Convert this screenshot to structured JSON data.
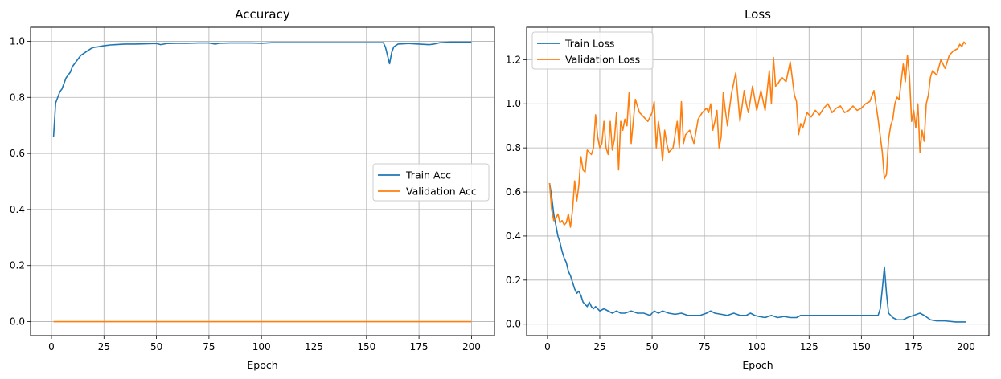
{
  "chart_data": [
    {
      "type": "line",
      "title": "Accuracy",
      "xlabel": "Epoch",
      "ylabel": "",
      "xlim": [
        -9.95,
        210.95
      ],
      "ylim": [
        -0.05,
        1.05
      ],
      "xticks": [
        0,
        25,
        50,
        75,
        100,
        125,
        150,
        175,
        200
      ],
      "yticks": [
        0.0,
        0.2,
        0.4,
        0.6,
        0.8,
        1.0
      ],
      "ytick_labels": [
        "0.0",
        "0.2",
        "0.4",
        "0.6",
        "0.8",
        "1.0"
      ],
      "grid": true,
      "legend_position": "center-right",
      "series": [
        {
          "name": "Train Acc",
          "color": "#1f77b4",
          "x": [
            1,
            2,
            3,
            4,
            5,
            6,
            7,
            8,
            9,
            10,
            11,
            12,
            13,
            14,
            15,
            16,
            17,
            18,
            19,
            20,
            22,
            24,
            26,
            28,
            30,
            35,
            40,
            45,
            50,
            52,
            55,
            60,
            65,
            70,
            75,
            78,
            80,
            85,
            90,
            95,
            100,
            105,
            110,
            115,
            120,
            130,
            140,
            150,
            155,
            158,
            159,
            160,
            161,
            162,
            163,
            165,
            170,
            175,
            180,
            182,
            185,
            190,
            195,
            200
          ],
          "values": [
            0.66,
            0.78,
            0.8,
            0.82,
            0.83,
            0.85,
            0.87,
            0.88,
            0.89,
            0.91,
            0.92,
            0.93,
            0.94,
            0.95,
            0.955,
            0.96,
            0.965,
            0.97,
            0.975,
            0.978,
            0.98,
            0.983,
            0.985,
            0.987,
            0.988,
            0.99,
            0.99,
            0.991,
            0.992,
            0.988,
            0.992,
            0.993,
            0.993,
            0.994,
            0.994,
            0.99,
            0.993,
            0.994,
            0.994,
            0.994,
            0.993,
            0.995,
            0.995,
            0.995,
            0.995,
            0.995,
            0.995,
            0.995,
            0.995,
            0.995,
            0.98,
            0.95,
            0.92,
            0.96,
            0.98,
            0.99,
            0.992,
            0.99,
            0.988,
            0.99,
            0.995,
            0.997,
            0.997,
            0.997
          ]
        },
        {
          "name": "Validation Acc",
          "color": "#ff7f0e",
          "x": [
            1,
            200
          ],
          "values": [
            0.0,
            0.0
          ]
        }
      ]
    },
    {
      "type": "line",
      "title": "Loss",
      "xlabel": "Epoch",
      "ylabel": "",
      "xlim": [
        -9.95,
        210.95
      ],
      "ylim": [
        -0.052,
        1.347
      ],
      "xticks": [
        0,
        25,
        50,
        75,
        100,
        125,
        150,
        175,
        200
      ],
      "yticks": [
        0.0,
        0.2,
        0.4,
        0.6,
        0.8,
        1.0,
        1.2
      ],
      "ytick_labels": [
        "0.0",
        "0.2",
        "0.4",
        "0.6",
        "0.8",
        "1.0",
        "1.2"
      ],
      "grid": true,
      "legend_position": "top-left",
      "series": [
        {
          "name": "Train Loss",
          "color": "#1f77b4",
          "x": [
            1,
            2,
            3,
            4,
            5,
            6,
            7,
            8,
            9,
            10,
            11,
            12,
            13,
            14,
            15,
            16,
            17,
            18,
            19,
            20,
            21,
            22,
            23,
            24,
            25,
            27,
            29,
            31,
            33,
            35,
            37,
            40,
            43,
            46,
            49,
            51,
            53,
            55,
            58,
            61,
            64,
            67,
            70,
            73,
            76,
            78,
            80,
            83,
            86,
            89,
            92,
            95,
            97,
            99,
            101,
            104,
            107,
            110,
            113,
            116,
            119,
            121,
            125,
            130,
            135,
            140,
            145,
            150,
            155,
            158,
            159,
            160,
            161,
            162,
            163,
            165,
            167,
            170,
            172,
            175,
            178,
            180,
            183,
            186,
            190,
            195,
            200
          ],
          "values": [
            0.64,
            0.58,
            0.5,
            0.45,
            0.4,
            0.37,
            0.33,
            0.3,
            0.28,
            0.24,
            0.22,
            0.19,
            0.16,
            0.14,
            0.15,
            0.13,
            0.1,
            0.09,
            0.08,
            0.1,
            0.08,
            0.07,
            0.08,
            0.07,
            0.06,
            0.07,
            0.06,
            0.05,
            0.06,
            0.05,
            0.05,
            0.06,
            0.05,
            0.05,
            0.04,
            0.06,
            0.05,
            0.06,
            0.05,
            0.045,
            0.05,
            0.04,
            0.04,
            0.04,
            0.05,
            0.06,
            0.05,
            0.045,
            0.04,
            0.05,
            0.04,
            0.04,
            0.05,
            0.04,
            0.035,
            0.03,
            0.04,
            0.03,
            0.035,
            0.03,
            0.03,
            0.04,
            0.04,
            0.04,
            0.04,
            0.04,
            0.04,
            0.04,
            0.04,
            0.04,
            0.07,
            0.16,
            0.26,
            0.14,
            0.05,
            0.03,
            0.02,
            0.02,
            0.03,
            0.04,
            0.05,
            0.04,
            0.02,
            0.015,
            0.015,
            0.01,
            0.01
          ]
        },
        {
          "name": "Validation Loss",
          "color": "#ff7f0e",
          "x": [
            1,
            2,
            3,
            4,
            5,
            6,
            7,
            8,
            9,
            10,
            11,
            12,
            13,
            14,
            15,
            16,
            17,
            18,
            19,
            20,
            21,
            22,
            23,
            24,
            25,
            26,
            27,
            28,
            29,
            30,
            31,
            32,
            33,
            34,
            35,
            36,
            37,
            38,
            39,
            40,
            42,
            44,
            46,
            48,
            50,
            51,
            52,
            53,
            54,
            55,
            56,
            57,
            58,
            60,
            62,
            63,
            64,
            65,
            66,
            68,
            70,
            72,
            74,
            75,
            76,
            77,
            78,
            79,
            80,
            81,
            82,
            83,
            84,
            85,
            86,
            87,
            88,
            90,
            92,
            94,
            95,
            96,
            98,
            100,
            102,
            104,
            106,
            107,
            108,
            109,
            110,
            112,
            114,
            116,
            118,
            119,
            120,
            121,
            122,
            124,
            126,
            128,
            130,
            132,
            134,
            136,
            138,
            140,
            142,
            144,
            146,
            148,
            150,
            152,
            154,
            156,
            158,
            160,
            161,
            162,
            163,
            164,
            165,
            166,
            167,
            168,
            170,
            171,
            172,
            173,
            174,
            175,
            176,
            177,
            178,
            179,
            180,
            181,
            182,
            183,
            184,
            186,
            188,
            190,
            192,
            194,
            196,
            197,
            198,
            199,
            200
          ],
          "values": [
            0.64,
            0.52,
            0.47,
            0.48,
            0.5,
            0.46,
            0.47,
            0.45,
            0.46,
            0.5,
            0.44,
            0.52,
            0.65,
            0.56,
            0.63,
            0.76,
            0.7,
            0.69,
            0.79,
            0.78,
            0.77,
            0.8,
            0.95,
            0.85,
            0.8,
            0.82,
            0.92,
            0.8,
            0.77,
            0.92,
            0.79,
            0.84,
            0.96,
            0.7,
            0.92,
            0.88,
            0.93,
            0.9,
            1.05,
            0.82,
            1.02,
            0.96,
            0.94,
            0.92,
            0.96,
            1.01,
            0.8,
            0.92,
            0.85,
            0.74,
            0.88,
            0.82,
            0.78,
            0.8,
            0.92,
            0.8,
            1.01,
            0.82,
            0.86,
            0.88,
            0.82,
            0.93,
            0.96,
            0.97,
            0.98,
            0.96,
            1.0,
            0.88,
            0.92,
            0.97,
            0.8,
            0.85,
            1.05,
            0.97,
            0.9,
            0.98,
            1.05,
            1.14,
            0.92,
            1.06,
            1.0,
            0.96,
            1.08,
            0.97,
            1.06,
            0.97,
            1.15,
            1.0,
            1.21,
            1.08,
            1.09,
            1.12,
            1.1,
            1.19,
            1.04,
            1.01,
            0.86,
            0.91,
            0.89,
            0.96,
            0.94,
            0.97,
            0.95,
            0.98,
            1.0,
            0.96,
            0.98,
            0.99,
            0.96,
            0.97,
            0.99,
            0.97,
            0.98,
            1.0,
            1.01,
            1.06,
            0.93,
            0.78,
            0.66,
            0.68,
            0.84,
            0.9,
            0.93,
            1.0,
            1.03,
            1.02,
            1.18,
            1.1,
            1.22,
            1.12,
            0.92,
            0.97,
            0.89,
            1.0,
            0.78,
            0.88,
            0.83,
            1.0,
            1.04,
            1.12,
            1.15,
            1.13,
            1.2,
            1.16,
            1.22,
            1.24,
            1.25,
            1.27,
            1.26,
            1.28,
            1.27
          ]
        }
      ]
    }
  ]
}
